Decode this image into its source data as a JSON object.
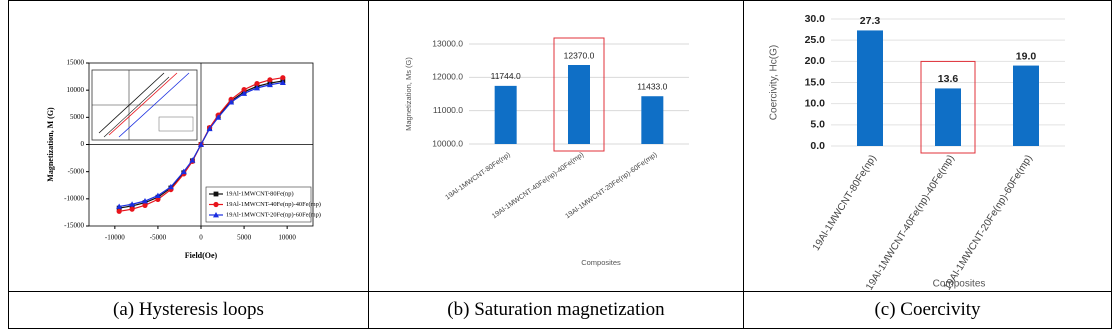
{
  "chart_data": [
    {
      "type": "line",
      "caption": "(a) Hysteresis loops",
      "xlabel": "Field(Oe)",
      "ylabel": "Magnetization, M (G)",
      "x": [
        -9500,
        -8000,
        -6500,
        -5000,
        -3500,
        -2000,
        -1000,
        0,
        1000,
        2000,
        3500,
        5000,
        6500,
        8000,
        9500
      ],
      "series": [
        {
          "name": "19Al-1MWCNT-80Fe(np)",
          "color": "#111111",
          "marker": "square",
          "values": [
            -11700,
            -11300,
            -10700,
            -9700,
            -8000,
            -5200,
            -3000,
            0,
            3000,
            5200,
            8000,
            9700,
            10700,
            11300,
            11700
          ]
        },
        {
          "name": "19Al-1MWCNT-40Fe(np)-40Fe(mp)",
          "color": "#e8141c",
          "marker": "circle",
          "values": [
            -12300,
            -11900,
            -11200,
            -10100,
            -8300,
            -5400,
            -3100,
            0,
            3100,
            5400,
            8300,
            10100,
            11200,
            11900,
            12300
          ]
        },
        {
          "name": "19Al-1MWCNT-20Fe(np)-60Fe(mp)",
          "color": "#1a2ee0",
          "marker": "triangle",
          "values": [
            -11400,
            -11000,
            -10400,
            -9400,
            -7800,
            -5000,
            -2900,
            0,
            2900,
            5000,
            7800,
            9400,
            10400,
            11000,
            11400
          ]
        }
      ],
      "xlim": [
        -13000,
        13000
      ],
      "xticks": [
        -10000,
        -5000,
        0,
        5000,
        10000
      ],
      "ylim": [
        -15000,
        15000
      ],
      "yticks": [
        -15000,
        -10000,
        -5000,
        0,
        5000,
        10000,
        15000
      ],
      "legend": "lower right"
    },
    {
      "type": "bar",
      "caption": "(b) Saturation magnetization",
      "xlabel": "Composites",
      "ylabel": "Magnetization, Ms (G)",
      "categories": [
        "19Al-1MWCNT-80Fe(np)",
        "19Al-1MWCNT-40Fe(np)-40Fe(mp)",
        "19Al-1MWCNT-20Fe(np)-60Fe(mp)"
      ],
      "values": [
        11744,
        12370,
        11433
      ],
      "value_labels": [
        "11744.0",
        "12370.0",
        "11433.0"
      ],
      "color": "#0f6fc6",
      "ylim": [
        10000,
        13000
      ],
      "yticks": [
        {
          "value": 10000,
          "label": "10000.0"
        },
        {
          "value": 11000,
          "label": "11000.0"
        },
        {
          "value": 12000,
          "label": "12000.0"
        },
        {
          "value": 13000,
          "label": "13000.0"
        }
      ],
      "grid": true,
      "highlight": 1,
      "highlight_color": "#e0303a"
    },
    {
      "type": "bar",
      "caption": "(c) Coercivity",
      "xlabel": "Composites",
      "ylabel": "Coercivity, Hc(G)",
      "categories": [
        "19Al-1MWCNT-80Fe(np)",
        "19Al-1MWCNT-40Fe(np)-40Fe(mp)",
        "19Al-1MWCNT-20Fe(np)-60Fe(mp)"
      ],
      "values": [
        27.3,
        13.6,
        19.0
      ],
      "value_labels": [
        "27.3",
        "13.6",
        "19.0"
      ],
      "color": "#0f6fc6",
      "ylim": [
        0,
        30
      ],
      "yticks": [
        {
          "value": 0,
          "label": "0.0"
        },
        {
          "value": 5,
          "label": "5.0"
        },
        {
          "value": 10,
          "label": "10.0"
        },
        {
          "value": 15,
          "label": "15.0"
        },
        {
          "value": 20,
          "label": "20.0"
        },
        {
          "value": 25,
          "label": "25.0"
        },
        {
          "value": 30,
          "label": "30.0"
        }
      ],
      "grid": true,
      "highlight": 1,
      "highlight_color": "#e0303a"
    }
  ]
}
